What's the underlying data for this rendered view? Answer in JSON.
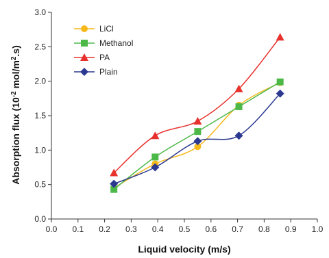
{
  "chart_data": {
    "type": "line",
    "title": "",
    "xlabel": "Liquid velocity (m/s)",
    "ylabel_main": "Absorption flux (10",
    "ylabel_sup1": "-2",
    "ylabel_mid": " mol/m",
    "ylabel_sup2": "2",
    "ylabel_end": ".s)",
    "xlim": [
      0.0,
      1.0
    ],
    "ylim": [
      0.0,
      3.0
    ],
    "xticks": [
      "0.0",
      "0.1",
      "0.2",
      "0.3",
      "0.4",
      "0.5",
      "0.6",
      "0.7",
      "0.8",
      "0.9",
      "1.0"
    ],
    "yticks": [
      "0.0",
      "0.5",
      "1.0",
      "1.5",
      "2.0",
      "2.5",
      "3.0"
    ],
    "grid": false,
    "legend_position": "top-left",
    "series": [
      {
        "name": "LiCl",
        "color": "#F6B91C",
        "marker": "circle",
        "x": [
          0.235,
          0.39,
          0.55,
          0.705,
          0.86
        ],
        "y": [
          0.45,
          0.8,
          1.05,
          1.65,
          1.98
        ]
      },
      {
        "name": "Methanol",
        "color": "#4CB848",
        "marker": "square",
        "x": [
          0.235,
          0.39,
          0.55,
          0.705,
          0.86
        ],
        "y": [
          0.43,
          0.9,
          1.27,
          1.63,
          1.99
        ]
      },
      {
        "name": "PA",
        "color": "#E8302C",
        "marker": "triangle",
        "x": [
          0.235,
          0.39,
          0.55,
          0.705,
          0.86
        ],
        "y": [
          0.67,
          1.21,
          1.42,
          1.89,
          2.64
        ]
      },
      {
        "name": "Plain",
        "color": "#2B3990",
        "marker": "diamond",
        "x": [
          0.235,
          0.39,
          0.55,
          0.705,
          0.86
        ],
        "y": [
          0.51,
          0.75,
          1.13,
          1.21,
          1.82
        ]
      }
    ]
  }
}
